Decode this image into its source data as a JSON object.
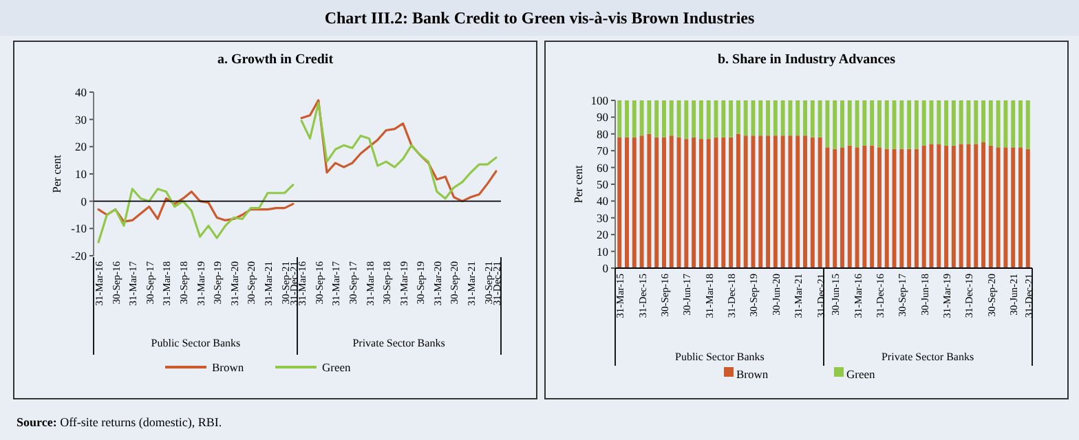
{
  "chart_data": [
    {
      "type": "other",
      "title": "Chart III.2: Bank Credit to Green vis-à-vis Brown Industries",
      "annotations": [
        "Source: Off-site returns (domestic), RBI."
      ]
    },
    {
      "type": "line",
      "title": "a. Growth in Credit",
      "ylabel": "Per cent",
      "legend": "bottom",
      "ylim": [
        -20,
        40
      ],
      "yticks": [
        -20,
        -10,
        0,
        10,
        20,
        30,
        40
      ],
      "categories": [
        "31-Mar-16",
        null,
        "30-Sep-16",
        null,
        "31-Mar-17",
        null,
        "30-Sep-17",
        null,
        "31-Mar-18",
        null,
        "30-Sep-18",
        null,
        "31-Mar-19",
        null,
        "30-Sep-19",
        null,
        "31-Mar-20",
        null,
        "30-Sep-20",
        null,
        "31-Mar-21",
        null,
        "30-Sep-21",
        "31-Dec-21",
        "31-Mar-16",
        null,
        "30-Sep-16",
        null,
        "31-Mar-17",
        null,
        "30-Sep-17",
        null,
        "31-Mar-18",
        null,
        "30-Sep-18",
        null,
        "31-Mar-19",
        null,
        "30-Sep-19",
        null,
        "31-Mar-20",
        null,
        "30-Sep-20",
        null,
        "31-Mar-21",
        null,
        "30-Sep-21",
        "31-Dec-21"
      ],
      "annotations": [
        "Public Sector Banks",
        "Private Sector Banks"
      ],
      "series": [
        {
          "name": "Brown",
          "color": "#cc5a2c",
          "values": [
            -3,
            -5,
            -3,
            -7.5,
            -7,
            -4.5,
            -2,
            -6.5,
            1,
            -1,
            1,
            3.5,
            0,
            -0.5,
            -6,
            -7,
            -6.5,
            -5,
            -3,
            -3,
            -3,
            -2.5,
            -2.5,
            -1,
            30.5,
            31.5,
            37,
            10.5,
            14,
            12.5,
            14,
            17.5,
            20,
            22.5,
            26,
            26.5,
            28.5,
            20.5,
            17,
            14,
            8,
            9,
            1.5,
            0,
            1.5,
            2.5,
            6.5,
            11
          ]
        },
        {
          "name": "Green",
          "color": "#92c84a",
          "values": [
            -15,
            -5,
            -3,
            -9,
            4.5,
            1,
            0,
            4.5,
            3.5,
            -2,
            0,
            -3.5,
            -13,
            -9,
            -13.5,
            -9,
            -6,
            -6.5,
            -2.5,
            -2.5,
            3,
            3,
            3,
            6,
            29.5,
            23,
            36,
            14.5,
            19,
            20.5,
            19.5,
            24,
            23,
            13,
            14.5,
            12.5,
            15.5,
            20.5,
            17,
            14.5,
            3.5,
            1,
            5,
            7,
            10.5,
            13.5,
            13.5,
            16
          ]
        }
      ]
    },
    {
      "type": "bar",
      "stacked": true,
      "title": "b. Share in Industry Advances",
      "ylabel": "Per cent",
      "legend": "bottom",
      "ylim": [
        0,
        100
      ],
      "yticks": [
        0,
        10,
        20,
        30,
        40,
        50,
        60,
        70,
        80,
        90,
        100
      ],
      "categories": [
        "31-Mar-15",
        null,
        null,
        "31-Dec-15",
        null,
        null,
        "30-Sep-16",
        null,
        null,
        "30-Jun-17",
        null,
        null,
        "31-Mar-18",
        null,
        null,
        "31-Dec-18",
        null,
        null,
        "30-Sep-19",
        null,
        null,
        "30-Jun-20",
        null,
        null,
        "31-Mar-21",
        null,
        null,
        "31-Dec-21",
        null,
        "30-Jun-15",
        null,
        null,
        "31-Mar-16",
        null,
        null,
        "31-Dec-16",
        null,
        null,
        "30-Sep-17",
        null,
        null,
        "30-Jun-18",
        null,
        null,
        "31-Mar-19",
        null,
        null,
        "31-Dec-19",
        null,
        null,
        "30-Sep-20",
        null,
        null,
        "30-Jun-21",
        null,
        "31-Dec-21"
      ],
      "annotations": [
        "Public Sector Banks",
        "Private Sector Banks"
      ],
      "series": [
        {
          "name": "Brown",
          "color": "#cc5a2c",
          "values": [
            78,
            78,
            78,
            79,
            80,
            78,
            78,
            79,
            78,
            77,
            78,
            77,
            77,
            78,
            78,
            78,
            80,
            79,
            79,
            79,
            79,
            79,
            79,
            79,
            79,
            79,
            78,
            78,
            72,
            71,
            72,
            73,
            72,
            73,
            73,
            72,
            71,
            71,
            71,
            71,
            71,
            73,
            74,
            74,
            73,
            73,
            74,
            74,
            74,
            75,
            73,
            72,
            72,
            72,
            72,
            71
          ]
        },
        {
          "name": "Green",
          "color": "#92c84a",
          "values": [
            22,
            22,
            22,
            21,
            20,
            22,
            22,
            21,
            22,
            23,
            22,
            23,
            23,
            22,
            22,
            22,
            20,
            21,
            21,
            21,
            21,
            21,
            21,
            21,
            21,
            21,
            22,
            22,
            28,
            29,
            28,
            27,
            28,
            27,
            27,
            28,
            29,
            29,
            29,
            29,
            29,
            27,
            26,
            26,
            27,
            27,
            26,
            26,
            26,
            25,
            27,
            28,
            28,
            28,
            28,
            29
          ]
        }
      ]
    }
  ]
}
